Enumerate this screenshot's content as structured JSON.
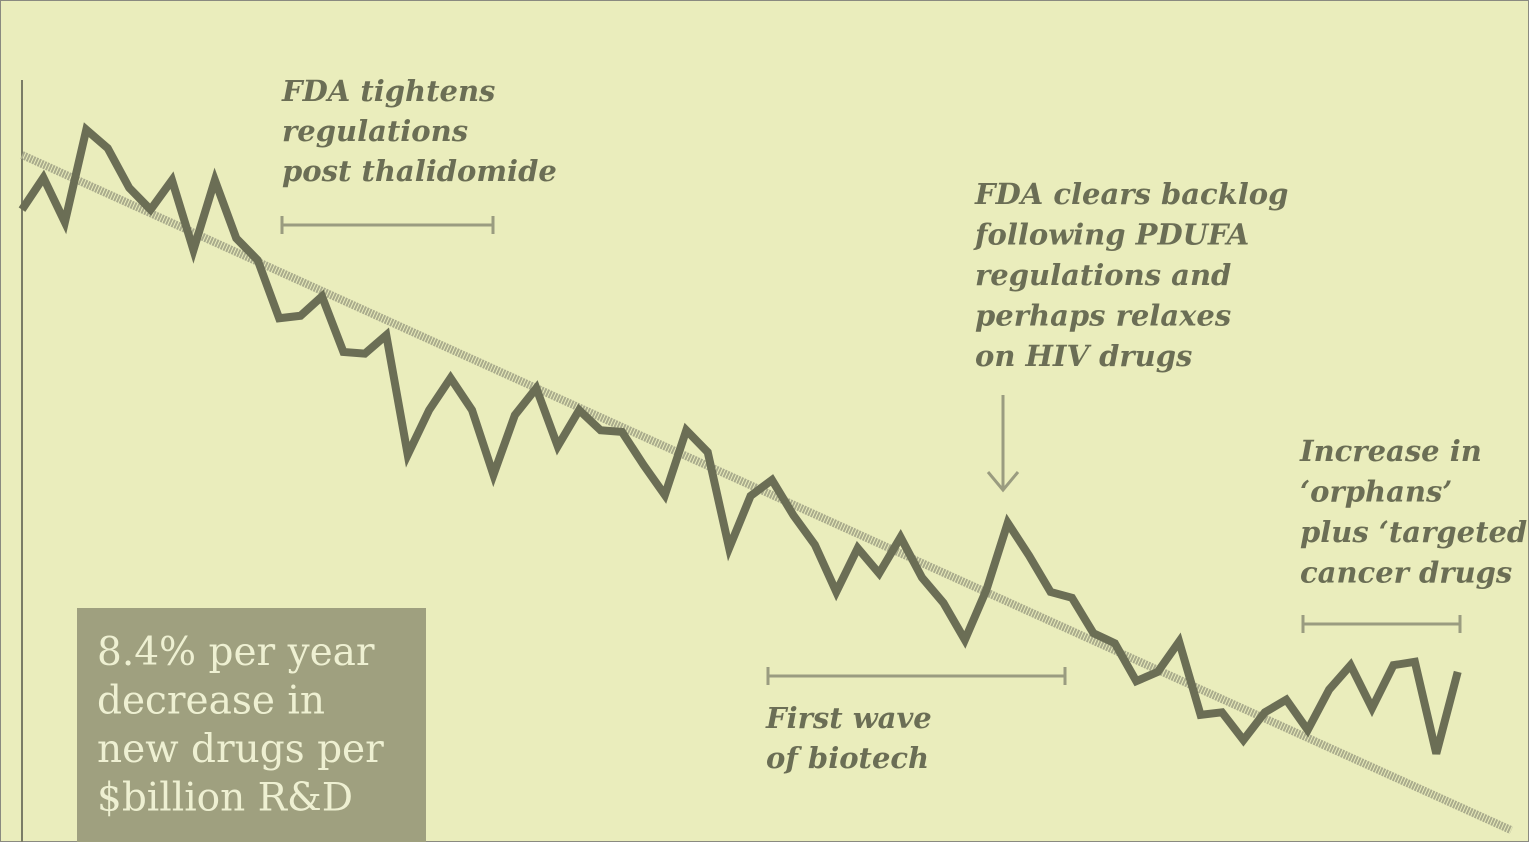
{
  "chart_data": {
    "type": "line",
    "values": [
      75.1,
      78.9,
      73.6,
      84.6,
      82.4,
      77.7,
      75.1,
      78.6,
      70.3,
      78.6,
      71.7,
      69.1,
      62.2,
      62.5,
      64.8,
      58.2,
      58.0,
      60.2,
      46.0,
      51.3,
      55.1,
      51.3,
      43.6,
      50.7,
      53.9,
      47.0,
      51.3,
      48.9,
      48.7,
      44.8,
      41.2,
      48.9,
      46.3,
      34.9,
      41.1,
      43.0,
      38.8,
      35.3,
      29.7,
      34.9,
      31.9,
      36.2,
      31.4,
      28.4,
      24.0,
      29.9,
      37.9,
      34.0,
      29.7,
      29.0,
      24.8,
      23.6,
      19.1,
      20.2,
      23.8,
      15.1,
      15.4,
      12.1,
      15.4,
      16.9,
      13.3,
      18.1,
      21.0,
      15.9,
      21.0,
      21.4,
      10.5,
      20.2
    ],
    "color": "#6b6e55",
    "trend": {
      "x": [
        0,
        69.5
      ],
      "values": [
        81.6,
        1.4
      ],
      "color": "#a9ab8c"
    },
    "xlim": [
      0,
      70
    ],
    "ylim": [
      0,
      100
    ],
    "annotations": [
      {
        "lines": [
          "FDA tightens",
          "regulations",
          "post thalidomide"
        ]
      },
      {
        "lines": [
          "FDA clears backlog",
          "following PDUFA",
          "regulations and",
          "perhaps relaxes",
          "on HIV drugs"
        ]
      },
      {
        "lines": [
          "First wave",
          "of biotech"
        ]
      },
      {
        "lines": [
          "Increase in",
          "‘orphans’",
          "plus ‘targeted",
          "cancer drugs"
        ]
      }
    ],
    "callout": {
      "lines": [
        "8.4% per year",
        "decrease in",
        "new drugs per",
        "$billion R&D"
      ]
    }
  }
}
